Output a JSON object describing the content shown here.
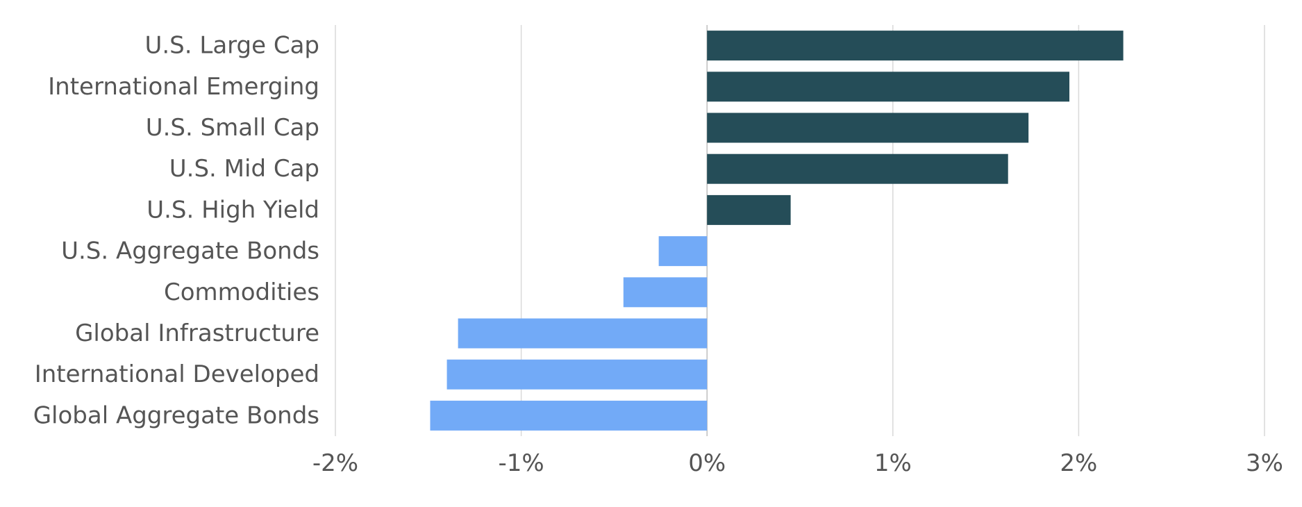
{
  "chart_data": {
    "type": "bar",
    "orientation": "horizontal",
    "categories": [
      "U.S. Large Cap",
      "International Emerging",
      "U.S. Small Cap",
      "U.S. Mid Cap",
      "U.S. High Yield",
      "U.S. Aggregate Bonds",
      "Commodities",
      "Global Infrastructure",
      "International Developed",
      "Global Aggregate Bonds"
    ],
    "values": [
      2.24,
      1.95,
      1.73,
      1.62,
      0.45,
      -0.26,
      -0.45,
      -1.34,
      -1.4,
      -1.49
    ],
    "unit": "%",
    "xlim": [
      -2,
      3
    ],
    "xticks": [
      -2,
      -1,
      0,
      1,
      2,
      3
    ],
    "xtick_labels": [
      "-2%",
      "-1%",
      "0%",
      "1%",
      "2%",
      "3%"
    ],
    "title": "",
    "xlabel": "",
    "ylabel": "",
    "grid": "vertical",
    "legend": "none",
    "colors": {
      "positive": "#254d58",
      "negative": "#72aaf7"
    }
  }
}
